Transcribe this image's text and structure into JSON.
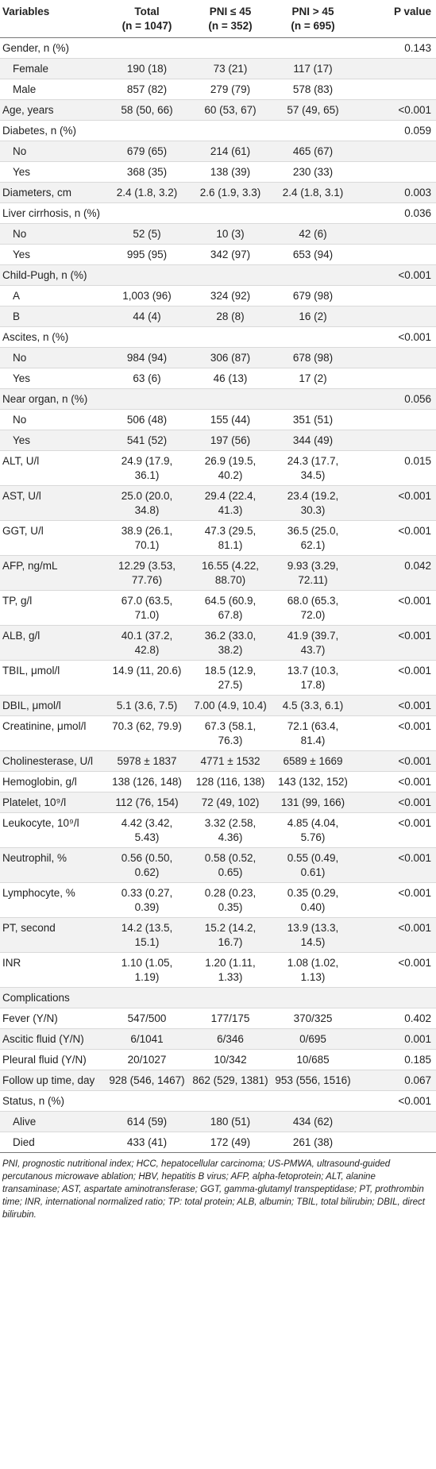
{
  "header": {
    "variables": "Variables",
    "total": "Total",
    "total_n": "(n = 1047)",
    "pni_low": "PNI ≤ 45",
    "pni_low_n": "(n = 352)",
    "pni_high": "PNI > 45",
    "pni_high_n": "(n = 695)",
    "p_value": "P value"
  },
  "rows": [
    {
      "var": "Gender, n (%)",
      "total": "",
      "low": "",
      "high": "",
      "p": "0.143",
      "sub": false
    },
    {
      "var": "Female",
      "total": "190 (18)",
      "low": "73 (21)",
      "high": "117 (17)",
      "p": "",
      "sub": true
    },
    {
      "var": "Male",
      "total": "857 (82)",
      "low": "279 (79)",
      "high": "578 (83)",
      "p": "",
      "sub": true
    },
    {
      "var": "Age, years",
      "total": "58 (50, 66)",
      "low": "60 (53, 67)",
      "high": "57 (49, 65)",
      "p": "<0.001",
      "sub": false
    },
    {
      "var": "Diabetes, n (%)",
      "total": "",
      "low": "",
      "high": "",
      "p": "0.059",
      "sub": false
    },
    {
      "var": "No",
      "total": "679 (65)",
      "low": "214 (61)",
      "high": "465 (67)",
      "p": "",
      "sub": true
    },
    {
      "var": "Yes",
      "total": "368 (35)",
      "low": "138 (39)",
      "high": "230 (33)",
      "p": "",
      "sub": true
    },
    {
      "var": "Diameters, cm",
      "total": "2.4 (1.8, 3.2)",
      "low": "2.6 (1.9, 3.3)",
      "high": "2.4 (1.8, 3.1)",
      "p": "0.003",
      "sub": false
    },
    {
      "var": "Liver cirrhosis, n (%)",
      "total": "",
      "low": "",
      "high": "",
      "p": "0.036",
      "sub": false
    },
    {
      "var": "No",
      "total": "52 (5)",
      "low": "10 (3)",
      "high": "42 (6)",
      "p": "",
      "sub": true
    },
    {
      "var": "Yes",
      "total": "995 (95)",
      "low": "342 (97)",
      "high": "653 (94)",
      "p": "",
      "sub": true
    },
    {
      "var": "Child-Pugh, n (%)",
      "total": "",
      "low": "",
      "high": "",
      "p": "<0.001",
      "sub": false
    },
    {
      "var": "A",
      "total": "1,003 (96)",
      "low": "324 (92)",
      "high": "679 (98)",
      "p": "",
      "sub": true
    },
    {
      "var": "B",
      "total": "44 (4)",
      "low": "28 (8)",
      "high": "16 (2)",
      "p": "",
      "sub": true
    },
    {
      "var": "Ascites, n (%)",
      "total": "",
      "low": "",
      "high": "",
      "p": "<0.001",
      "sub": false
    },
    {
      "var": "No",
      "total": "984 (94)",
      "low": "306 (87)",
      "high": "678 (98)",
      "p": "",
      "sub": true
    },
    {
      "var": "Yes",
      "total": "63 (6)",
      "low": "46 (13)",
      "high": "17 (2)",
      "p": "",
      "sub": true
    },
    {
      "var": "Near organ, n (%)",
      "total": "",
      "low": "",
      "high": "",
      "p": "0.056",
      "sub": false
    },
    {
      "var": "No",
      "total": "506 (48)",
      "low": "155 (44)",
      "high": "351 (51)",
      "p": "",
      "sub": true
    },
    {
      "var": "Yes",
      "total": "541 (52)",
      "low": "197 (56)",
      "high": "344 (49)",
      "p": "",
      "sub": true
    },
    {
      "var": "ALT, U/l",
      "total": "24.9 (17.9, 36.1)",
      "low": "26.9 (19.5, 40.2)",
      "high": "24.3 (17.7, 34.5)",
      "p": "0.015",
      "sub": false
    },
    {
      "var": "AST, U/l",
      "total": "25.0 (20.0, 34.8)",
      "low": "29.4 (22.4, 41.3)",
      "high": "23.4 (19.2, 30.3)",
      "p": "<0.001",
      "sub": false
    },
    {
      "var": "GGT, U/l",
      "total": "38.9 (26.1, 70.1)",
      "low": "47.3 (29.5, 81.1)",
      "high": "36.5 (25.0, 62.1)",
      "p": "<0.001",
      "sub": false
    },
    {
      "var": "AFP, ng/mL",
      "total": "12.29 (3.53, 77.76)",
      "low": "16.55 (4.22, 88.70)",
      "high": "9.93 (3.29, 72.11)",
      "p": "0.042",
      "sub": false
    },
    {
      "var": "TP, g/l",
      "total": "67.0 (63.5, 71.0)",
      "low": "64.5 (60.9, 67.8)",
      "high": "68.0 (65.3, 72.0)",
      "p": "<0.001",
      "sub": false
    },
    {
      "var": "ALB, g/l",
      "total": "40.1 (37.2, 42.8)",
      "low": "36.2 (33.0, 38.2)",
      "high": "41.9 (39.7, 43.7)",
      "p": "<0.001",
      "sub": false
    },
    {
      "var": "TBIL, μmol/l",
      "total": "14.9 (11, 20.6)",
      "low": "18.5 (12.9, 27.5)",
      "high": "13.7 (10.3, 17.8)",
      "p": "<0.001",
      "sub": false
    },
    {
      "var": "DBIL, μmol/l",
      "total": "5.1 (3.6, 7.5)",
      "low": "7.00 (4.9, 10.4)",
      "high": "4.5 (3.3, 6.1)",
      "p": "<0.001",
      "sub": false
    },
    {
      "var": "Creatinine, μmol/l",
      "total": "70.3 (62, 79.9)",
      "low": "67.3 (58.1, 76.3)",
      "high": "72.1 (63.4, 81.4)",
      "p": "<0.001",
      "sub": false
    },
    {
      "var": "Cholinesterase, U/l",
      "total": "5978 ± 1837",
      "low": "4771 ± 1532",
      "high": "6589 ± 1669",
      "p": "<0.001",
      "sub": false
    },
    {
      "var": "Hemoglobin, g/l",
      "total": "138 (126, 148)",
      "low": "128 (116, 138)",
      "high": "143 (132, 152)",
      "p": "<0.001",
      "sub": false
    },
    {
      "var": "Platelet, 10⁹/l",
      "total": "112 (76, 154)",
      "low": "72 (49, 102)",
      "high": "131 (99, 166)",
      "p": "<0.001",
      "sub": false
    },
    {
      "var": "Leukocyte, 10⁹/l",
      "total": "4.42 (3.42, 5.43)",
      "low": "3.32 (2.58, 4.36)",
      "high": "4.85 (4.04, 5.76)",
      "p": "<0.001",
      "sub": false
    },
    {
      "var": "Neutrophil, %",
      "total": "0.56 (0.50, 0.62)",
      "low": "0.58 (0.52, 0.65)",
      "high": "0.55 (0.49, 0.61)",
      "p": "<0.001",
      "sub": false
    },
    {
      "var": "Lymphocyte, %",
      "total": "0.33 (0.27, 0.39)",
      "low": "0.28 (0.23, 0.35)",
      "high": "0.35 (0.29, 0.40)",
      "p": "<0.001",
      "sub": false
    },
    {
      "var": "PT, second",
      "total": "14.2 (13.5, 15.1)",
      "low": "15.2 (14.2, 16.7)",
      "high": "13.9 (13.3, 14.5)",
      "p": "<0.001",
      "sub": false
    },
    {
      "var": "INR",
      "total": "1.10 (1.05, 1.19)",
      "low": "1.20 (1.11, 1.33)",
      "high": "1.08 (1.02, 1.13)",
      "p": "<0.001",
      "sub": false
    },
    {
      "var": "Complications",
      "total": "",
      "low": "",
      "high": "",
      "p": "",
      "sub": false
    },
    {
      "var": "Fever (Y/N)",
      "total": "547/500",
      "low": "177/175",
      "high": "370/325",
      "p": "0.402",
      "sub": false
    },
    {
      "var": "Ascitic fluid (Y/N)",
      "total": "6/1041",
      "low": "6/346",
      "high": "0/695",
      "p": "0.001",
      "sub": false
    },
    {
      "var": "Pleural fluid (Y/N)",
      "total": "20/1027",
      "low": "10/342",
      "high": "10/685",
      "p": "0.185",
      "sub": false
    },
    {
      "var": "Follow up time, day",
      "total": "928 (546, 1467)",
      "low": "862 (529, 1381)",
      "high": "953 (556, 1516)",
      "p": "0.067",
      "sub": false
    },
    {
      "var": "Status, n (%)",
      "total": "",
      "low": "",
      "high": "",
      "p": "<0.001",
      "sub": false
    },
    {
      "var": "Alive",
      "total": "614 (59)",
      "low": "180 (51)",
      "high": "434 (62)",
      "p": "",
      "sub": true
    },
    {
      "var": "Died",
      "total": "433 (41)",
      "low": "172 (49)",
      "high": "261 (38)",
      "p": "",
      "sub": true
    }
  ],
  "footnote": "PNI, prognostic nutritional index; HCC, hepatocellular carcinoma; US-PMWA, ultrasound-guided percutanous microwave ablation; HBV, hepatitis B virus; AFP, alpha-fetoprotein; ALT, alanine transaminase; AST, aspartate aminotransferase; GGT, gamma-glutamyl transpeptidase; PT, prothrombin time; INR, international normalized ratio; TP: total protein; ALB, albumin; TBIL, total bilirubin; DBIL, direct bilirubin."
}
